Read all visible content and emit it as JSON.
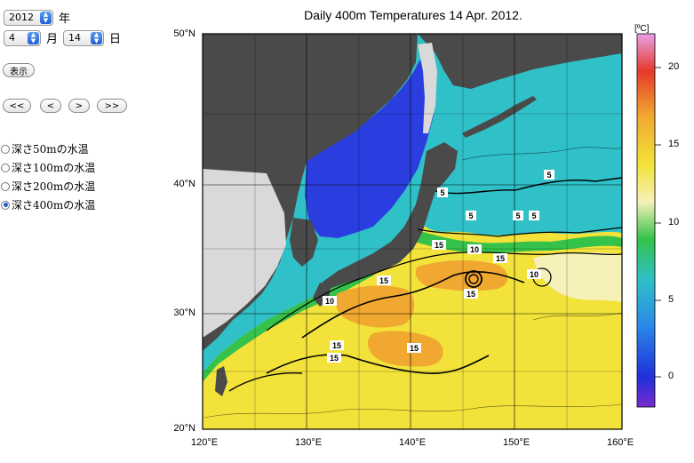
{
  "controls": {
    "year_value": "2012",
    "year_unit": "年",
    "month_value": "4",
    "month_unit": "月",
    "day_value": "14",
    "day_unit": "日",
    "show_button": "表示",
    "nav_buttons": [
      "<<",
      "<",
      ">",
      ">>"
    ],
    "depth_options": [
      {
        "label": "深さ50mの水温",
        "selected": false
      },
      {
        "label": "深さ100mの水温",
        "selected": false
      },
      {
        "label": "深さ200mの水温",
        "selected": false
      },
      {
        "label": "深さ400mの水温",
        "selected": true
      }
    ]
  },
  "map": {
    "title": "Daily 400m Temperatures 14 Apr. 2012.",
    "lat_labels": [
      "50°N",
      "40°N",
      "30°N",
      "20°N"
    ],
    "lon_labels": [
      "120°E",
      "130°E",
      "140°E",
      "150°E",
      "160°E"
    ],
    "contour_labels": [
      "5",
      "5",
      "5",
      "5",
      "5",
      "10",
      "10",
      "10",
      "15",
      "15",
      "15",
      "15",
      "15",
      "15",
      "15"
    ],
    "colorbar": {
      "unit": "[ºC]",
      "ticks": [
        "20",
        "15",
        "10",
        "5",
        "0"
      ]
    },
    "colors": {
      "land": "#4a4a4a",
      "shelf": "#d9d9d9",
      "cold": "#2a3ee0",
      "teal": "#2fc0c8",
      "green": "#34c24a",
      "yellow": "#f2e23a",
      "orange": "#f0a830",
      "pink": "#e89ad8"
    }
  }
}
